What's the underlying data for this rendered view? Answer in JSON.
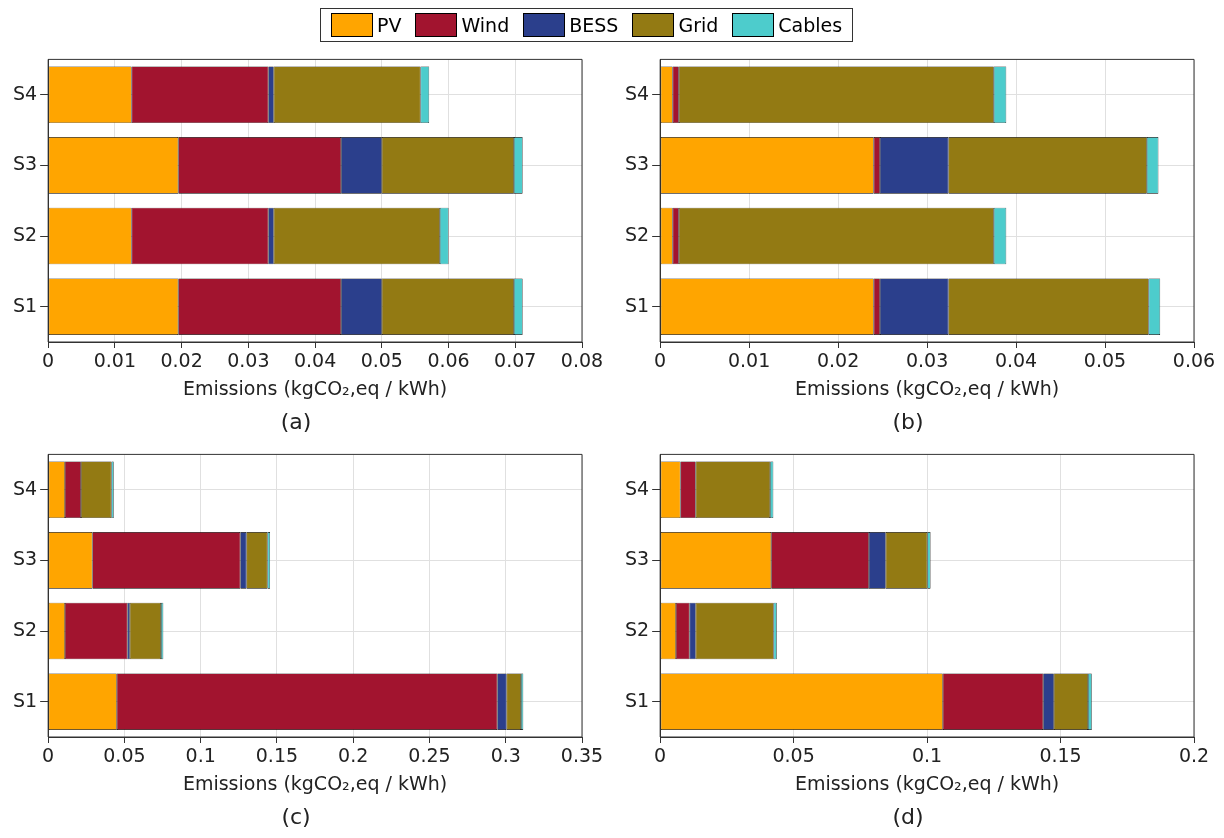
{
  "chart_data": [
    {
      "type": "bar",
      "orientation": "horizontal",
      "stacked": true,
      "title": "(a)",
      "xlabel": "Emissions (kgCO₂,eq / kWh)",
      "categories": [
        "S4",
        "S3",
        "S2",
        "S1"
      ],
      "xlim": [
        0,
        0.08
      ],
      "xticks": [
        0,
        0.01,
        0.02,
        0.03,
        0.04,
        0.05,
        0.06,
        0.07,
        0.08
      ],
      "grid": true,
      "legend": "top",
      "series": [
        {
          "name": "PV",
          "color": "#ffa500",
          "values": [
            0.0125,
            0.0195,
            0.0125,
            0.0195
          ]
        },
        {
          "name": "Wind",
          "color": "#a2142f",
          "values": [
            0.0205,
            0.0244,
            0.0205,
            0.0244
          ]
        },
        {
          "name": "BESS",
          "color": "#2b3f8c",
          "values": [
            0.0008,
            0.0061,
            0.0008,
            0.0061
          ]
        },
        {
          "name": "Grid",
          "color": "#937a13",
          "values": [
            0.022,
            0.0198,
            0.0249,
            0.0198
          ]
        },
        {
          "name": "Cables",
          "color": "#4dcccc",
          "values": [
            0.0013,
            0.0013,
            0.0013,
            0.0013
          ]
        }
      ]
    },
    {
      "type": "bar",
      "orientation": "horizontal",
      "stacked": true,
      "title": "(b)",
      "xlabel": "Emissions (kgCO₂,eq / kWh)",
      "categories": [
        "S4",
        "S3",
        "S2",
        "S1"
      ],
      "xlim": [
        0,
        0.06
      ],
      "xticks": [
        0,
        0.01,
        0.02,
        0.03,
        0.04,
        0.05,
        0.06
      ],
      "grid": true,
      "series": [
        {
          "color": "#ffa500",
          "values": [
            0.0014,
            0.024,
            0.0014,
            0.024
          ]
        },
        {
          "color": "#a2142f",
          "values": [
            0.0007,
            0.0007,
            0.0007,
            0.0007
          ]
        },
        {
          "color": "#2b3f8c",
          "values": [
            0,
            0.0077,
            0,
            0.0077
          ]
        },
        {
          "color": "#937a13",
          "values": [
            0.0354,
            0.0223,
            0.0354,
            0.0225
          ]
        },
        {
          "color": "#4dcccc",
          "values": [
            0.0014,
            0.0013,
            0.0014,
            0.0013
          ]
        }
      ]
    },
    {
      "type": "bar",
      "orientation": "horizontal",
      "stacked": true,
      "title": "(c)",
      "xlabel": "Emissions (kgCO₂,eq / kWh)",
      "categories": [
        "S4",
        "S3",
        "S2",
        "S1"
      ],
      "xlim": [
        0,
        0.35
      ],
      "xticks": [
        0,
        0.05,
        0.1,
        0.15,
        0.2,
        0.25,
        0.3,
        0.35
      ],
      "grid": true,
      "series": [
        {
          "color": "#ffa500",
          "values": [
            0.011,
            0.029,
            0.011,
            0.045
          ]
        },
        {
          "color": "#a2142f",
          "values": [
            0.0105,
            0.097,
            0.041,
            0.2495
          ]
        },
        {
          "color": "#2b3f8c",
          "values": [
            0,
            0.004,
            0.0015,
            0.006
          ]
        },
        {
          "color": "#937a13",
          "values": [
            0.02,
            0.0138,
            0.0205,
            0.0095
          ]
        },
        {
          "color": "#4dcccc",
          "values": [
            0.0015,
            0.0017,
            0.0015,
            0.0015
          ]
        }
      ]
    },
    {
      "type": "bar",
      "orientation": "horizontal",
      "stacked": true,
      "title": "(d)",
      "xlabel": "Emissions (kgCO₂,eq / kWh)",
      "categories": [
        "S4",
        "S3",
        "S2",
        "S1"
      ],
      "xlim": [
        0,
        0.2
      ],
      "xticks": [
        0,
        0.05,
        0.1,
        0.15,
        0.2
      ],
      "grid": true,
      "series": [
        {
          "color": "#ffa500",
          "values": [
            0.0076,
            0.0416,
            0.0059,
            0.1059
          ]
        },
        {
          "color": "#a2142f",
          "values": [
            0.0057,
            0.0366,
            0.0051,
            0.0376
          ]
        },
        {
          "color": "#2b3f8c",
          "values": [
            0,
            0.0063,
            0.0023,
            0.004
          ]
        },
        {
          "color": "#937a13",
          "values": [
            0.0279,
            0.0156,
            0.0292,
            0.0128
          ]
        },
        {
          "color": "#4dcccc",
          "values": [
            0.0012,
            0.0012,
            0.0012,
            0.0014
          ]
        }
      ]
    }
  ]
}
